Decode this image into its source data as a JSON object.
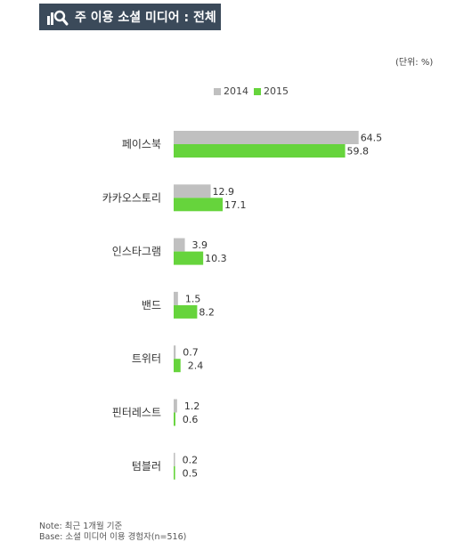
{
  "header": {
    "title": "주 이용 소셜 미디어 : 전체",
    "icon": "chart-magnifier-icon"
  },
  "unit_label": "(단위: %)",
  "colors": {
    "s2014": "#c0c0c0",
    "s2015": "#66d43c",
    "header_bg": "#3b4a5a"
  },
  "chart_data": {
    "type": "bar",
    "orientation": "horizontal",
    "title": "주 이용 소셜 미디어 : 전체",
    "categories": [
      "페이스북",
      "카카오스토리",
      "인스타그램",
      "밴드",
      "트위터",
      "핀터레스트",
      "텀블러"
    ],
    "series": [
      {
        "name": "2014",
        "values": [
          64.5,
          12.9,
          3.9,
          1.5,
          0.7,
          1.2,
          0.2
        ]
      },
      {
        "name": "2015",
        "values": [
          59.8,
          17.1,
          10.3,
          8.2,
          2.4,
          0.6,
          0.5
        ]
      }
    ],
    "unit": "%",
    "legend": "top-center",
    "grid": false
  },
  "notes": [
    "Note: 최근 1개월 기준",
    "Base: 소셜 미디어 이용 경험자(n=516)"
  ]
}
